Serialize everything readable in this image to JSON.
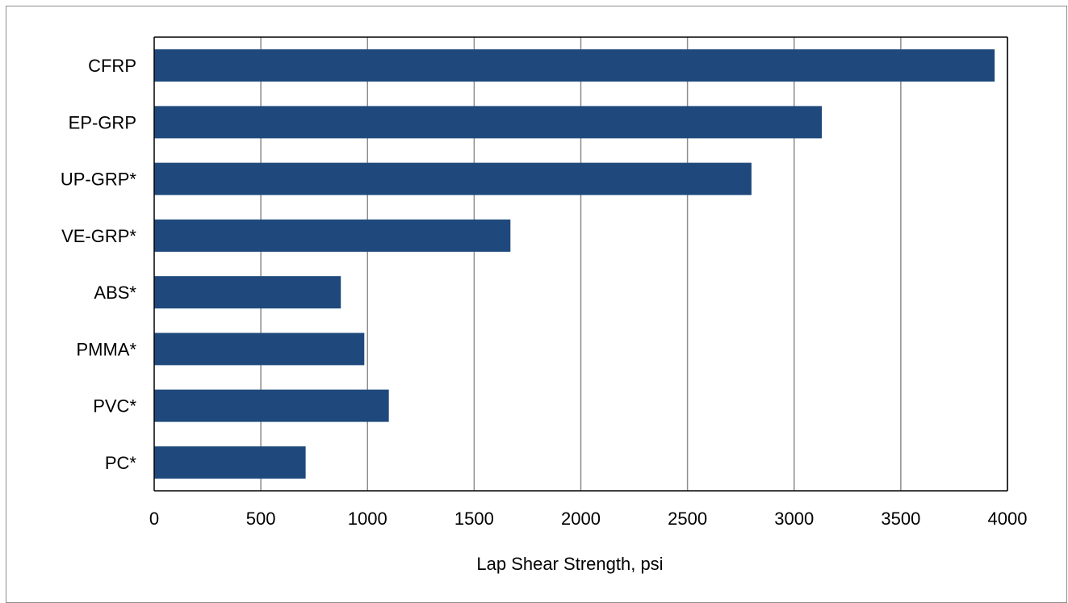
{
  "chart_data": {
    "type": "bar",
    "orientation": "horizontal",
    "categories": [
      "CFRP",
      "EP-GRP",
      "UP-GRP*",
      "VE-GRP*",
      "ABS*",
      "PMMA*",
      "PVC*",
      "PC*"
    ],
    "values": [
      3940,
      3130,
      2800,
      1670,
      875,
      985,
      1100,
      710
    ],
    "xlabel": "Lap Shear Strength, psi",
    "ylabel": "",
    "xlim": [
      0,
      4000
    ],
    "xticks": [
      0,
      500,
      1000,
      1500,
      2000,
      2500,
      3000,
      3500,
      4000
    ],
    "grid": "vertical",
    "bar_color": "#1f497d",
    "grid_color": "#8c8c8c"
  }
}
